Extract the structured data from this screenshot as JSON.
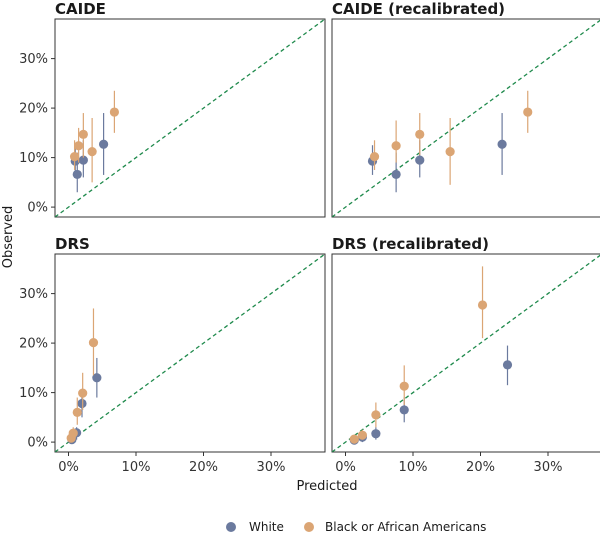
{
  "chart_data": {
    "type": "scatter",
    "xlabel": "Predicted",
    "ylabel": "Observed",
    "xlim": [
      -0.02,
      0.38
    ],
    "ylim": [
      -0.02,
      0.38
    ],
    "x_ticks": [
      0,
      0.1,
      0.2,
      0.3
    ],
    "y_ticks": [
      0,
      0.1,
      0.2,
      0.3
    ],
    "x_tick_labels": [
      "0%",
      "10%",
      "20%",
      "30%"
    ],
    "y_tick_labels": [
      "0%",
      "10%",
      "20%",
      "30%"
    ],
    "reference_line": "identity (y = x), dashed",
    "legend": {
      "position": "bottom",
      "items": [
        {
          "name": "White",
          "color": "#6b7a9e"
        },
        {
          "name": "Black or African Americans",
          "color": "#dba574"
        }
      ]
    },
    "colors": {
      "White": "#6b7a9e",
      "Black or African Americans": "#dba574",
      "reference": "#1f8a4c"
    },
    "panels": [
      {
        "title": "CAIDE",
        "series": [
          {
            "name": "White",
            "points": [
              {
                "x": 0.01,
                "y": 0.093,
                "lo": 0.065,
                "hi": 0.125
              },
              {
                "x": 0.013,
                "y": 0.066,
                "lo": 0.03,
                "hi": 0.11
              },
              {
                "x": 0.022,
                "y": 0.095,
                "lo": 0.06,
                "hi": 0.135
              },
              {
                "x": 0.052,
                "y": 0.127,
                "lo": 0.065,
                "hi": 0.19
              }
            ]
          },
          {
            "name": "Black or African Americans",
            "points": [
              {
                "x": 0.009,
                "y": 0.102,
                "lo": 0.075,
                "hi": 0.135
              },
              {
                "x": 0.015,
                "y": 0.124,
                "lo": 0.09,
                "hi": 0.16
              },
              {
                "x": 0.022,
                "y": 0.147,
                "lo": 0.1,
                "hi": 0.19
              },
              {
                "x": 0.035,
                "y": 0.112,
                "lo": 0.05,
                "hi": 0.18
              },
              {
                "x": 0.068,
                "y": 0.192,
                "lo": 0.15,
                "hi": 0.235
              }
            ]
          }
        ]
      },
      {
        "title": "CAIDE (recalibrated)",
        "series": [
          {
            "name": "White",
            "points": [
              {
                "x": 0.04,
                "y": 0.093,
                "lo": 0.065,
                "hi": 0.125
              },
              {
                "x": 0.075,
                "y": 0.066,
                "lo": 0.03,
                "hi": 0.11
              },
              {
                "x": 0.11,
                "y": 0.095,
                "lo": 0.06,
                "hi": 0.135
              },
              {
                "x": 0.232,
                "y": 0.127,
                "lo": 0.065,
                "hi": 0.19
              }
            ]
          },
          {
            "name": "Black or African Americans",
            "points": [
              {
                "x": 0.043,
                "y": 0.102,
                "lo": 0.075,
                "hi": 0.135
              },
              {
                "x": 0.075,
                "y": 0.124,
                "lo": 0.09,
                "hi": 0.175
              },
              {
                "x": 0.11,
                "y": 0.147,
                "lo": 0.105,
                "hi": 0.19
              },
              {
                "x": 0.155,
                "y": 0.112,
                "lo": 0.045,
                "hi": 0.18
              },
              {
                "x": 0.27,
                "y": 0.192,
                "lo": 0.15,
                "hi": 0.235
              }
            ]
          }
        ]
      },
      {
        "title": "DRS",
        "series": [
          {
            "name": "White",
            "points": [
              {
                "x": 0.005,
                "y": 0.005,
                "lo": 0.0,
                "hi": 0.01
              },
              {
                "x": 0.012,
                "y": 0.019,
                "lo": 0.005,
                "hi": 0.03
              },
              {
                "x": 0.02,
                "y": 0.078,
                "lo": 0.05,
                "hi": 0.105
              },
              {
                "x": 0.042,
                "y": 0.13,
                "lo": 0.09,
                "hi": 0.17
              }
            ]
          },
          {
            "name": "Black or African Americans",
            "points": [
              {
                "x": 0.004,
                "y": 0.008,
                "lo": 0.0,
                "hi": 0.015
              },
              {
                "x": 0.007,
                "y": 0.018,
                "lo": 0.005,
                "hi": 0.03
              },
              {
                "x": 0.013,
                "y": 0.06,
                "lo": 0.035,
                "hi": 0.09
              },
              {
                "x": 0.021,
                "y": 0.099,
                "lo": 0.065,
                "hi": 0.14
              },
              {
                "x": 0.037,
                "y": 0.201,
                "lo": 0.135,
                "hi": 0.27
              }
            ]
          }
        ]
      },
      {
        "title": "DRS (recalibrated)",
        "series": [
          {
            "name": "White",
            "points": [
              {
                "x": 0.013,
                "y": 0.004,
                "lo": 0.0,
                "hi": 0.01
              },
              {
                "x": 0.025,
                "y": 0.01,
                "lo": 0.0,
                "hi": 0.02
              },
              {
                "x": 0.045,
                "y": 0.017,
                "lo": 0.005,
                "hi": 0.03
              },
              {
                "x": 0.087,
                "y": 0.065,
                "lo": 0.04,
                "hi": 0.09
              },
              {
                "x": 0.24,
                "y": 0.156,
                "lo": 0.115,
                "hi": 0.195
              }
            ]
          },
          {
            "name": "Black or African Americans",
            "points": [
              {
                "x": 0.013,
                "y": 0.006,
                "lo": 0.0,
                "hi": 0.012
              },
              {
                "x": 0.025,
                "y": 0.014,
                "lo": 0.005,
                "hi": 0.025
              },
              {
                "x": 0.045,
                "y": 0.055,
                "lo": 0.03,
                "hi": 0.08
              },
              {
                "x": 0.087,
                "y": 0.113,
                "lo": 0.075,
                "hi": 0.155
              },
              {
                "x": 0.203,
                "y": 0.277,
                "lo": 0.21,
                "hi": 0.355
              }
            ]
          }
        ]
      }
    ]
  }
}
